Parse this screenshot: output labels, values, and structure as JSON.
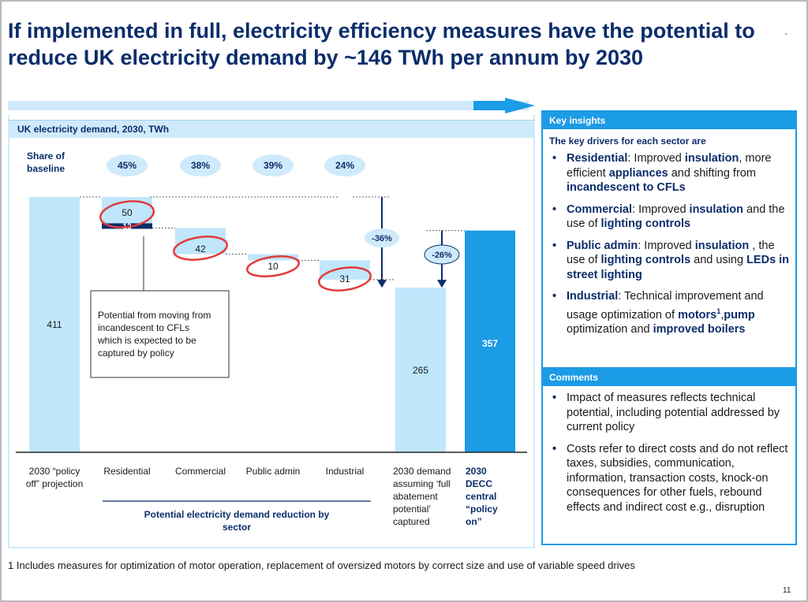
{
  "slide": {
    "title": "If implemented in full, electricity efficiency measures have the potential to reduce UK electricity demand by ~146 TWh per annum by 2030",
    "footnote": "1 Includes measures for optimization of motor operation, replacement of oversized motors by correct size and use of variable speed drives",
    "page_number": "11"
  },
  "chart_data": {
    "type": "waterfall",
    "title": "UK electricity demand, 2030, TWh",
    "share_label": "Share of baseline",
    "categories": [
      "2030 “policy off” projection",
      "Residential",
      "Commercial",
      "Public admin",
      "Industrial",
      "2030 demand assuming ‘full abatement potential’ captured",
      "2030 DECC central “policy on”"
    ],
    "shares": [
      "45%",
      "38%",
      "39%",
      "24%"
    ],
    "values": [
      411,
      50,
      42,
      10,
      31,
      265,
      357
    ],
    "residential_extra": 13,
    "changes": [
      "-36%",
      "-26%"
    ],
    "callout": "Potential from moving from incandescent to CFLs which is expected to be captured by policy",
    "group_label": "Potential electricity demand reduction by sector",
    "colors": {
      "light": "#bfe6fb",
      "dark": "#0b2d6b",
      "bright": "#1c9be6",
      "circle": "#e23a3a"
    }
  },
  "insights": {
    "header": "Key insights",
    "subtitle": "The key drivers for each sector are",
    "items": [
      {
        "parts": [
          [
            "b",
            "Residential"
          ],
          [
            "n",
            ": Improved "
          ],
          [
            "b",
            "insulation"
          ],
          [
            "n",
            ", more efficient "
          ],
          [
            "b",
            "appliances"
          ],
          [
            "n",
            " and shifting from "
          ],
          [
            "b",
            "incandescent to CFLs"
          ]
        ]
      },
      {
        "parts": [
          [
            "b",
            "Commercial"
          ],
          [
            "n",
            ": Improved "
          ],
          [
            "b",
            "insulation"
          ],
          [
            "n",
            " and the use of "
          ],
          [
            "b",
            "lighting controls"
          ]
        ]
      },
      {
        "parts": [
          [
            "b",
            "Public admin"
          ],
          [
            "n",
            ": Improved "
          ],
          [
            "b",
            "insulation"
          ],
          [
            "n",
            " , the use of "
          ],
          [
            "b",
            "lighting controls"
          ],
          [
            "n",
            " and using "
          ],
          [
            "b",
            "LEDs in street lighting"
          ]
        ]
      },
      {
        "parts": [
          [
            "b",
            "Industrial"
          ],
          [
            "n",
            ": Technical improvement and usage optimization of "
          ],
          [
            "b",
            "motors"
          ],
          [
            "sup",
            "1"
          ],
          [
            "n",
            ","
          ],
          [
            "b",
            "pump"
          ],
          [
            "n",
            " optimization and "
          ],
          [
            "b",
            "improved boilers"
          ]
        ]
      }
    ]
  },
  "comments": {
    "header": "Comments",
    "items": [
      "Impact of measures reflects technical potential, including potential addressed by current policy",
      "Costs refer to direct costs and do not reflect taxes, subsidies, communication, information, transaction costs, knock-on consequences for other fuels, rebound effects and indirect cost e.g., disruption"
    ]
  }
}
